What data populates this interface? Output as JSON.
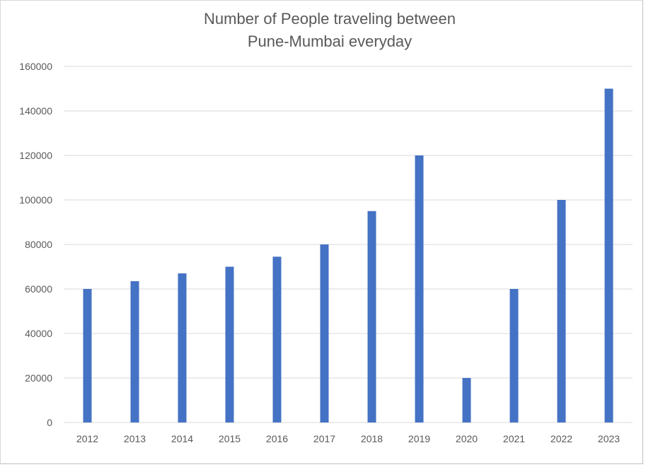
{
  "chart_data": {
    "type": "bar",
    "title_lines": [
      "Number of People traveling between",
      "Pune-Mumbai everyday"
    ],
    "xlabel": "",
    "ylabel": "",
    "categories": [
      "2012",
      "2013",
      "2014",
      "2015",
      "2016",
      "2017",
      "2018",
      "2019",
      "2020",
      "2021",
      "2022",
      "2023"
    ],
    "values": [
      60000,
      63500,
      67000,
      70000,
      74500,
      80000,
      95000,
      120000,
      20000,
      60000,
      100000,
      150000
    ],
    "ylim": [
      0,
      160000
    ],
    "yticks": [
      "0",
      "20000",
      "40000",
      "60000",
      "80000",
      "100000",
      "120000",
      "140000",
      "160000"
    ],
    "grid": true,
    "legend": "none",
    "bar_color": "#4472c4",
    "grid_color": "#d9d9d9",
    "text_color": "#595959"
  }
}
